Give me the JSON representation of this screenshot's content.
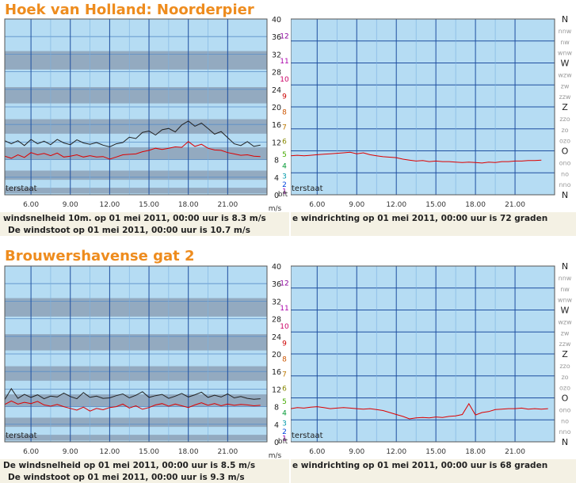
{
  "stations": [
    {
      "title": "Hoek van Holland: Noorderpier",
      "speed_chart": {
        "type": "line",
        "x_ticks": [
          "6.00",
          "9.00",
          "12.00",
          "15.00",
          "18.00",
          "21.00"
        ],
        "ms_ticks": [
          "0",
          "4",
          "8",
          "12",
          "16",
          "20",
          "24",
          "28",
          "32",
          "36",
          "40"
        ],
        "bft_ticks": [
          "1",
          "2",
          "3",
          "4",
          "5",
          "6",
          "7",
          "8",
          "9",
          "10",
          "11",
          "12"
        ],
        "bft_levels_ms": [
          0.3,
          1.6,
          3.4,
          5.5,
          8.0,
          10.8,
          13.9,
          17.2,
          20.8,
          24.5,
          28.5,
          32.7
        ],
        "bft_unit": "bft",
        "ms_unit": "m/s",
        "corner_label": "terstaat",
        "ylim": [
          0,
          40
        ],
        "xlim": [
          4,
          24
        ],
        "series": [
          {
            "color": "#222222",
            "x": [
              4,
              4.5,
              5,
              5.5,
              6,
              6.5,
              7,
              7.5,
              8,
              8.5,
              9,
              9.5,
              10,
              10.5,
              11,
              11.5,
              12,
              12.5,
              13,
              13.5,
              14,
              14.5,
              15,
              15.5,
              16,
              16.5,
              17,
              17.5,
              18,
              18.5,
              19,
              19.5,
              20,
              20.5,
              21,
              21.5,
              22,
              22.5,
              23,
              23.5
            ],
            "values": [
              12.3,
              11.6,
              12.3,
              11.2,
              12.6,
              11.6,
              12.2,
              11.4,
              12.6,
              11.8,
              11.4,
              12.5,
              11.8,
              11.5,
              11.9,
              11.3,
              10.9,
              11.6,
              11.9,
              13.1,
              12.8,
              14.2,
              14.5,
              13.6,
              14.8,
              15.1,
              14.3,
              15.9,
              16.8,
              15.6,
              16.3,
              15.1,
              13.8,
              14.4,
              13.0,
              11.6,
              11.2,
              12.1,
              11.0,
              11.3
            ]
          },
          {
            "color": "#dd0000",
            "x": [
              4,
              4.5,
              5,
              5.5,
              6,
              6.5,
              7,
              7.5,
              8,
              8.5,
              9,
              9.5,
              10,
              10.5,
              11,
              11.5,
              12,
              12.5,
              13,
              13.5,
              14,
              14.5,
              15,
              15.5,
              16,
              16.5,
              17,
              17.5,
              18,
              18.5,
              19,
              19.5,
              20,
              20.5,
              21,
              21.5,
              22,
              22.5,
              23,
              23.5
            ],
            "values": [
              8.8,
              8.3,
              9.1,
              8.5,
              9.6,
              9.1,
              9.4,
              8.9,
              9.5,
              8.6,
              8.8,
              9.1,
              8.6,
              8.9,
              8.6,
              8.7,
              8.1,
              8.6,
              9.1,
              9.2,
              9.3,
              9.8,
              10.1,
              10.6,
              10.3,
              10.6,
              10.9,
              10.8,
              12.1,
              11.0,
              11.5,
              10.6,
              10.2,
              10.1,
              9.6,
              9.3,
              9.0,
              9.1,
              8.8,
              8.7
            ]
          }
        ]
      },
      "dir_chart": {
        "type": "line",
        "x_ticks": [
          "6.00",
          "9.00",
          "12.00",
          "15.00",
          "18.00",
          "21.00"
        ],
        "dir_ticks": [
          "N",
          "nnw",
          "nw",
          "wnw",
          "W",
          "wzw",
          "zw",
          "zzw",
          "Z",
          "zzo",
          "zo",
          "ozo",
          "O",
          "ono",
          "no",
          "nno",
          "N"
        ],
        "corner_label": "terstaat",
        "ylim": [
          0,
          360
        ],
        "xlim": [
          4,
          24
        ],
        "series": [
          {
            "color": "#dd0000",
            "x": [
              4,
              4.5,
              5,
              5.5,
              6,
              6.5,
              7,
              7.5,
              8,
              8.5,
              9,
              9.5,
              10,
              10.5,
              11,
              11.5,
              12,
              12.5,
              13,
              13.5,
              14,
              14.5,
              15,
              15.5,
              16,
              16.5,
              17,
              17.5,
              18,
              18.5,
              19,
              19.5,
              20,
              20.5,
              21,
              21.5,
              22,
              22.5,
              23
            ],
            "values": [
              80,
              81,
              80,
              81,
              82,
              83,
              84,
              85,
              86,
              87,
              84,
              86,
              82,
              80,
              78,
              77,
              76,
              73,
              71,
              69,
              70,
              68,
              69,
              68,
              68,
              67,
              66,
              67,
              66,
              65,
              67,
              66,
              68,
              68,
              69,
              69,
              70,
              70,
              71
            ]
          }
        ]
      },
      "speed_caption_line1": "windsnelheid 10m. op 01 mei 2011, 00:00 uur is 8.3 m/s",
      "speed_caption_line2": "De windstoot op 01 mei 2011, 00:00 uur is 10.7 m/s",
      "dir_caption": "e windrichting op 01 mei 2011, 00:00 uur is 72 graden"
    },
    {
      "title": "Brouwershavense gat 2",
      "speed_chart": {
        "type": "line",
        "x_ticks": [
          "6.00",
          "9.00",
          "12.00",
          "15.00",
          "18.00",
          "21.00"
        ],
        "ms_ticks": [
          "0",
          "4",
          "8",
          "12",
          "16",
          "20",
          "24",
          "28",
          "32",
          "36",
          "40"
        ],
        "bft_ticks": [
          "1",
          "2",
          "3",
          "4",
          "5",
          "6",
          "7",
          "8",
          "9",
          "10",
          "11",
          "12"
        ],
        "bft_levels_ms": [
          0.3,
          1.6,
          3.4,
          5.5,
          8.0,
          10.8,
          13.9,
          17.2,
          20.8,
          24.5,
          28.5,
          32.7
        ],
        "bft_unit": "bft",
        "ms_unit": "m/s",
        "corner_label": "terstaat",
        "ylim": [
          0,
          40
        ],
        "xlim": [
          4,
          24
        ],
        "series": [
          {
            "color": "#222222",
            "x": [
              4,
              4.5,
              5,
              5.5,
              6,
              6.5,
              7,
              7.5,
              8,
              8.5,
              9,
              9.5,
              10,
              10.5,
              11,
              11.5,
              12,
              12.5,
              13,
              13.5,
              14,
              14.5,
              15,
              15.5,
              16,
              16.5,
              17,
              17.5,
              18,
              18.5,
              19,
              19.5,
              20,
              20.5,
              21,
              21.5,
              22,
              22.5,
              23,
              23.5
            ],
            "values": [
              9.6,
              12.1,
              9.9,
              10.8,
              10.1,
              10.7,
              9.8,
              10.4,
              10.2,
              11.1,
              10.3,
              9.8,
              11.2,
              10.1,
              10.4,
              9.9,
              10.0,
              10.5,
              10.9,
              10.0,
              10.6,
              11.4,
              10.1,
              10.5,
              10.8,
              9.9,
              10.4,
              11.0,
              10.2,
              10.7,
              11.3,
              10.1,
              10.6,
              10.2,
              10.9,
              10.0,
              10.3,
              9.9,
              9.7,
              9.8
            ]
          },
          {
            "color": "#dd0000",
            "x": [
              4,
              4.5,
              5,
              5.5,
              6,
              6.5,
              7,
              7.5,
              8,
              8.5,
              9,
              9.5,
              10,
              10.5,
              11,
              11.5,
              12,
              12.5,
              13,
              13.5,
              14,
              14.5,
              15,
              15.5,
              16,
              16.5,
              17,
              17.5,
              18,
              18.5,
              19,
              19.5,
              20,
              20.5,
              21,
              21.5,
              22,
              22.5,
              23,
              23.5
            ],
            "values": [
              8.5,
              9.3,
              8.6,
              9.0,
              8.7,
              9.2,
              8.4,
              8.1,
              8.5,
              8.0,
              7.6,
              7.2,
              7.9,
              7.0,
              7.6,
              7.3,
              7.8,
              8.0,
              8.6,
              7.7,
              8.2,
              7.4,
              7.8,
              8.4,
              8.7,
              8.1,
              8.6,
              8.2,
              7.8,
              8.4,
              8.9,
              8.3,
              8.7,
              8.2,
              8.6,
              8.3,
              8.5,
              8.4,
              8.2,
              8.3
            ]
          }
        ]
      },
      "dir_chart": {
        "type": "line",
        "x_ticks": [
          "6.00",
          "9.00",
          "12.00",
          "15.00",
          "18.00",
          "21.00"
        ],
        "dir_ticks": [
          "N",
          "nnw",
          "nw",
          "wnw",
          "W",
          "wzw",
          "zw",
          "zzw",
          "Z",
          "zzo",
          "zo",
          "ozo",
          "O",
          "ono",
          "no",
          "nno",
          "N"
        ],
        "corner_label": "terstaat",
        "ylim": [
          0,
          360
        ],
        "xlim": [
          4,
          24
        ],
        "series": [
          {
            "color": "#dd0000",
            "x": [
              4,
              4.5,
              5,
              5.5,
              6,
              6.5,
              7,
              7.5,
              8,
              8.5,
              9,
              9.5,
              10,
              10.5,
              11,
              11.5,
              12,
              12.5,
              13,
              13.5,
              14,
              14.5,
              15,
              15.5,
              16,
              16.5,
              17,
              17.5,
              18,
              18.5,
              19,
              19.5,
              20,
              20.5,
              21,
              21.5,
              22,
              22.5,
              23,
              23.5
            ],
            "values": [
              68,
              70,
              69,
              71,
              72,
              70,
              68,
              69,
              70,
              69,
              68,
              67,
              68,
              66,
              64,
              60,
              56,
              52,
              47,
              49,
              50,
              49,
              51,
              50,
              52,
              53,
              56,
              78,
              55,
              60,
              62,
              66,
              67,
              68,
              68,
              69,
              67,
              68,
              67,
              68
            ]
          }
        ]
      },
      "speed_caption_line1": "De windsnelheid op 01 mei 2011, 00:00 uur is 8.5 m/s",
      "speed_caption_line2": "De windstoot op 01 mei 2011, 00:00 uur is 9.3 m/s",
      "dir_caption": "e windrichting op 01 mei 2011, 00:00 uur is 68 graden"
    }
  ]
}
